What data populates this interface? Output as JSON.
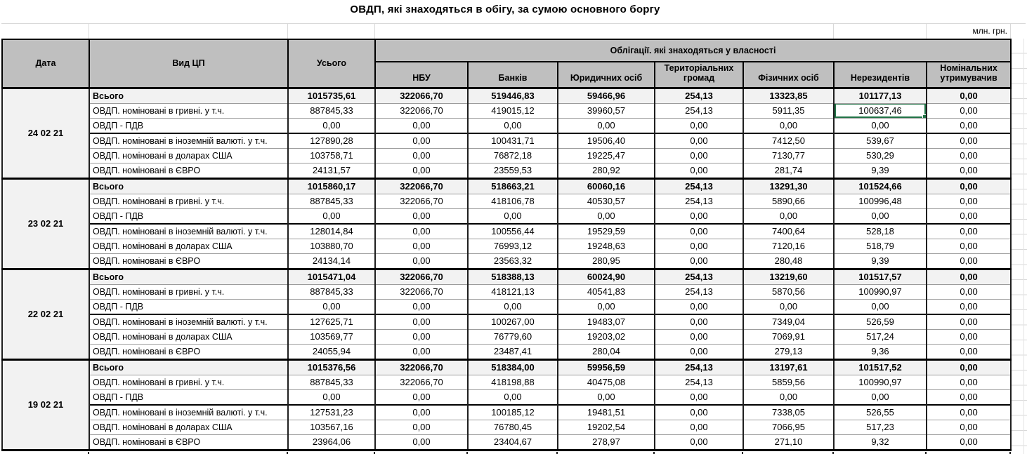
{
  "title": "ОВДП, які знаходяться в обігу, за сумою основного боргу",
  "unit_label": "млн. грн.",
  "colors": {
    "header_bg": "#bfbfbf",
    "total_row_bg": "#f2f2f2",
    "selection_green": "#217346",
    "grid_light": "#d9d9d9",
    "border_dark": "#000000"
  },
  "table": {
    "col_headers": {
      "date": "Дата",
      "type": "Вид ЦП",
      "total": "Усього",
      "ownership_group": "Облігації. які знаходяться у власності",
      "owners": [
        "НБУ",
        "Банків",
        "Юридичних осіб",
        "Територіальних громад",
        "Фізичних осіб",
        "Нерезидентів",
        "Номінальних утримувачив"
      ]
    },
    "row_labels": [
      "Всього",
      "ОВДП. номіновані в гривні. у т.ч.",
      "ОВДП - ПДВ",
      "ОВДП. номіновані в іноземній валюті. у т.ч.",
      "ОВДП. номіновані в доларах США",
      "ОВДП. номіновані в ЄВРО"
    ],
    "blocks": [
      {
        "date": "24 02 21",
        "rows": [
          [
            "1015735,61",
            "322066,70",
            "519446,83",
            "59466,96",
            "254,13",
            "13323,85",
            "101177,13",
            "0,00"
          ],
          [
            "887845,33",
            "322066,70",
            "419015,12",
            "39960,57",
            "254,13",
            "5911,35",
            "100637,46",
            "0,00"
          ],
          [
            "0,00",
            "0,00",
            "0,00",
            "0,00",
            "0,00",
            "0,00",
            "0,00",
            "0,00"
          ],
          [
            "127890,28",
            "0,00",
            "100431,71",
            "19506,40",
            "0,00",
            "7412,50",
            "539,67",
            "0,00"
          ],
          [
            "103758,71",
            "0,00",
            "76872,18",
            "19225,47",
            "0,00",
            "7130,77",
            "530,29",
            "0,00"
          ],
          [
            "24131,57",
            "0,00",
            "23559,53",
            "280,92",
            "0,00",
            "281,74",
            "9,39",
            "0,00"
          ]
        ]
      },
      {
        "date": "23 02 21",
        "rows": [
          [
            "1015860,17",
            "322066,70",
            "518663,21",
            "60060,16",
            "254,13",
            "13291,30",
            "101524,66",
            "0,00"
          ],
          [
            "887845,33",
            "322066,70",
            "418106,78",
            "40530,57",
            "254,13",
            "5890,66",
            "100996,48",
            "0,00"
          ],
          [
            "0,00",
            "0,00",
            "0,00",
            "0,00",
            "0,00",
            "0,00",
            "0,00",
            "0,00"
          ],
          [
            "128014,84",
            "0,00",
            "100556,44",
            "19529,59",
            "0,00",
            "7400,64",
            "528,18",
            "0,00"
          ],
          [
            "103880,70",
            "0,00",
            "76993,12",
            "19248,63",
            "0,00",
            "7120,16",
            "518,79",
            "0,00"
          ],
          [
            "24134,14",
            "0,00",
            "23563,32",
            "280,95",
            "0,00",
            "280,48",
            "9,39",
            "0,00"
          ]
        ]
      },
      {
        "date": "22 02 21",
        "rows": [
          [
            "1015471,04",
            "322066,70",
            "518388,13",
            "60024,90",
            "254,13",
            "13219,60",
            "101517,57",
            "0,00"
          ],
          [
            "887845,33",
            "322066,70",
            "418121,13",
            "40541,83",
            "254,13",
            "5870,56",
            "100990,97",
            "0,00"
          ],
          [
            "0,00",
            "0,00",
            "0,00",
            "0,00",
            "0,00",
            "0,00",
            "0,00",
            "0,00"
          ],
          [
            "127625,71",
            "0,00",
            "100267,00",
            "19483,07",
            "0,00",
            "7349,04",
            "526,59",
            "0,00"
          ],
          [
            "103569,77",
            "0,00",
            "76779,60",
            "19203,02",
            "0,00",
            "7069,91",
            "517,24",
            "0,00"
          ],
          [
            "24055,94",
            "0,00",
            "23487,41",
            "280,04",
            "0,00",
            "279,13",
            "9,36",
            "0,00"
          ]
        ]
      },
      {
        "date": "19 02 21",
        "rows": [
          [
            "1015376,56",
            "322066,70",
            "518384,00",
            "59956,59",
            "254,13",
            "13197,61",
            "101517,52",
            "0,00"
          ],
          [
            "887845,33",
            "322066,70",
            "418198,88",
            "40475,08",
            "254,13",
            "5859,56",
            "100990,97",
            "0,00"
          ],
          [
            "0,00",
            "0,00",
            "0,00",
            "0,00",
            "0,00",
            "0,00",
            "0,00",
            "0,00"
          ],
          [
            "127531,23",
            "0,00",
            "100185,12",
            "19481,51",
            "0,00",
            "7338,05",
            "526,55",
            "0,00"
          ],
          [
            "103567,16",
            "0,00",
            "76780,45",
            "19202,54",
            "0,00",
            "7066,95",
            "517,23",
            "0,00"
          ],
          [
            "23964,06",
            "0,00",
            "23404,67",
            "278,97",
            "0,00",
            "271,10",
            "9,32",
            "0,00"
          ]
        ]
      }
    ],
    "selected_cell": {
      "block": 0,
      "row": 1,
      "col": 6,
      "value": "100637,46"
    }
  }
}
